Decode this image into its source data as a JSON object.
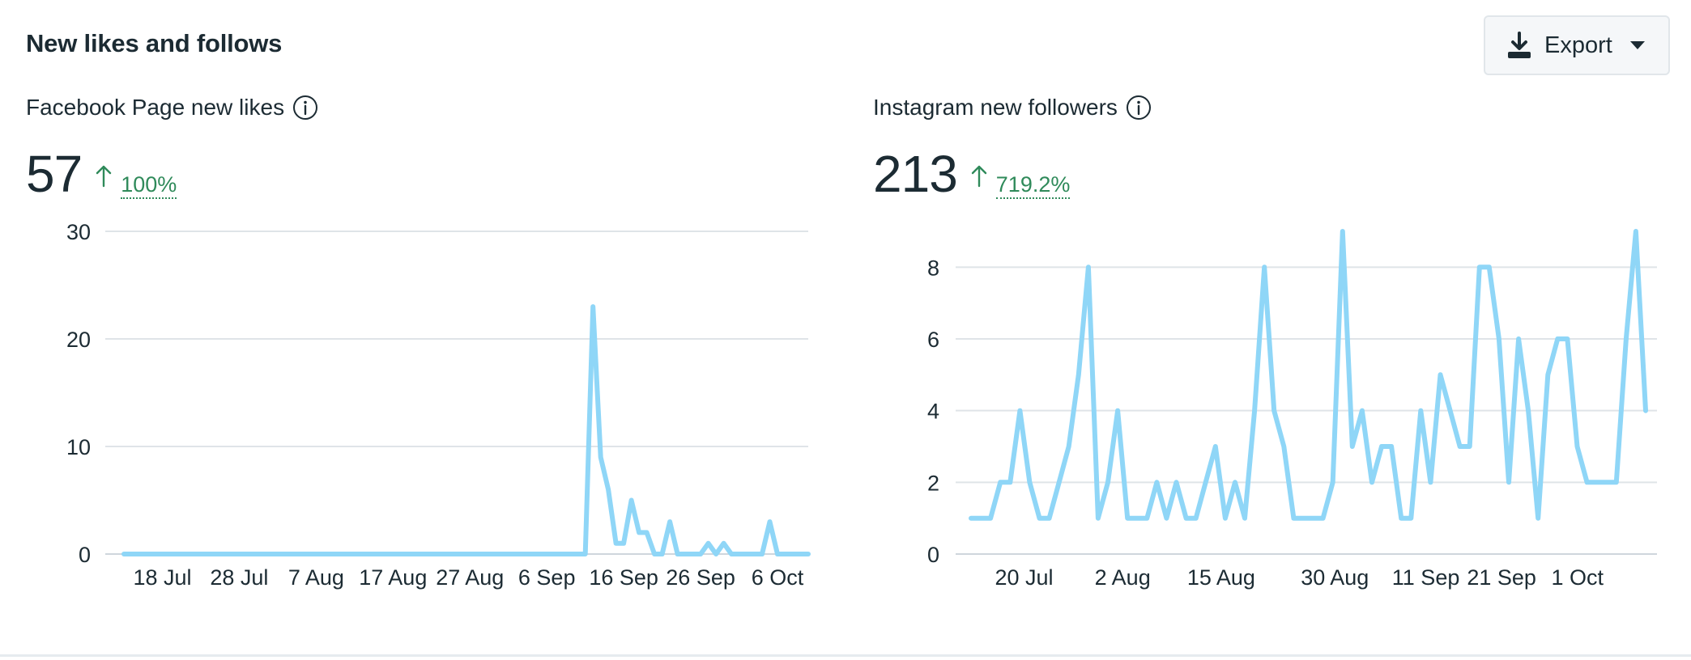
{
  "card": {
    "title": "New likes and follows",
    "export": {
      "label": "Export",
      "icon": "download-icon",
      "caret_icon": "caret-down-icon"
    }
  },
  "panels": [
    {
      "title": "Facebook Page new likes",
      "info_icon": "info-icon",
      "value": "57",
      "change": "100%",
      "change_direction": "up",
      "change_color": "#2f8a5a"
    },
    {
      "title": "Instagram new followers",
      "info_icon": "info-icon",
      "value": "213",
      "change": "719.2%",
      "change_direction": "up",
      "change_color": "#2f8a5a"
    }
  ],
  "chart_data": [
    {
      "type": "line",
      "ylim": [
        0,
        30
      ],
      "y_ticks": [
        "0",
        "10",
        "20",
        "30"
      ],
      "x_ticks": [
        "18 Jul",
        "28 Jul",
        "7 Aug",
        "17 Aug",
        "27 Aug",
        "6 Sep",
        "16 Sep",
        "26 Sep",
        "6 Oct"
      ],
      "x_tick_days": [
        5,
        15,
        25,
        35,
        45,
        55,
        65,
        75,
        85
      ],
      "x_range_days": [
        0,
        89
      ],
      "grid": true,
      "line_color": "#8fd6f7",
      "series": [
        {
          "values": [
            0,
            0,
            0,
            0,
            0,
            0,
            0,
            0,
            0,
            0,
            0,
            0,
            0,
            0,
            0,
            0,
            0,
            0,
            0,
            0,
            0,
            0,
            0,
            0,
            0,
            0,
            0,
            0,
            0,
            0,
            0,
            0,
            0,
            0,
            0,
            0,
            0,
            0,
            0,
            0,
            0,
            0,
            0,
            0,
            0,
            0,
            0,
            0,
            0,
            0,
            0,
            0,
            0,
            0,
            0,
            0,
            0,
            0,
            0,
            0,
            0,
            23,
            9,
            6,
            1,
            1,
            5,
            2,
            2,
            0,
            0,
            3,
            0,
            0,
            0,
            0,
            1,
            0,
            1,
            0,
            0,
            0,
            0,
            0,
            3,
            0,
            0,
            0,
            0,
            0
          ]
        }
      ]
    },
    {
      "type": "line",
      "ylim": [
        0,
        9
      ],
      "y_ticks": [
        "0",
        "2",
        "4",
        "6",
        "8"
      ],
      "x_ticks": [
        "20 Jul",
        "2 Aug",
        "15 Aug",
        "30 Aug",
        "11 Sep",
        "21 Sep",
        "1 Oct"
      ],
      "x_tick_days": [
        7,
        20,
        33,
        48,
        60,
        70,
        80
      ],
      "x_range_days": [
        0,
        89
      ],
      "grid": true,
      "line_color": "#8fd6f7",
      "series": [
        {
          "values": [
            1,
            1,
            1,
            2,
            2,
            4,
            2,
            1,
            1,
            2,
            3,
            5,
            8,
            1,
            2,
            4,
            1,
            1,
            1,
            2,
            1,
            2,
            1,
            1,
            2,
            3,
            1,
            2,
            1,
            4,
            8,
            4,
            3,
            1,
            1,
            1,
            1,
            2,
            9,
            3,
            4,
            2,
            3,
            3,
            1,
            1,
            4,
            2,
            5,
            4,
            3,
            3,
            8,
            8,
            6,
            2,
            6,
            4,
            1,
            5,
            6,
            6,
            3,
            2,
            2,
            2,
            2,
            6,
            9,
            4
          ]
        }
      ]
    }
  ]
}
